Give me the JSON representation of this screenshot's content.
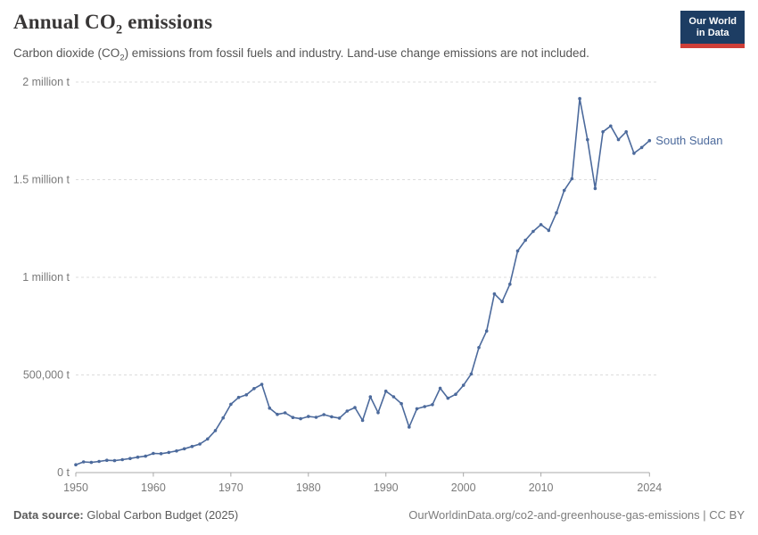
{
  "header": {
    "title_pre": "Annual CO",
    "title_sub": "2",
    "title_post": " emissions",
    "subtitle_pre": "Carbon dioxide (CO",
    "subtitle_sub": "2",
    "subtitle_post": ") emissions from fossil fuels and industry. Land-use change emissions are not included.",
    "logo_line1": "Our World",
    "logo_line2": "in Data"
  },
  "footer": {
    "source_label": "Data source:",
    "source_value": " Global Carbon Budget (2025)",
    "url": "OurWorldinData.org/co2-and-greenhouse-gas-emissions | CC BY"
  },
  "colors": {
    "line": "#4C6A9C",
    "title": "#383636",
    "subtitle": "#555555",
    "axis_text": "#7a7a7a",
    "grid": "#dcdcdc",
    "axis_line": "#a8a8a8",
    "logo_bg": "#1d3d63",
    "logo_red": "#cf3f38"
  },
  "chart_data": {
    "type": "line",
    "title": "Annual CO₂ emissions",
    "subtitle": "Carbon dioxide (CO₂) emissions from fossil fuels and industry. Land-use change emissions are not included.",
    "xlabel": "",
    "ylabel": "",
    "unit": "t",
    "xlim": [
      1950,
      2024
    ],
    "ylim": [
      0,
      2000000
    ],
    "grid": "horizontal-dashed",
    "legend_position": "end-of-line-label",
    "x_ticks": [
      1950,
      1960,
      1970,
      1980,
      1990,
      2000,
      2010,
      2024
    ],
    "y_ticks": [
      {
        "value": 0,
        "label": "0 t"
      },
      {
        "value": 500000,
        "label": "500,000 t"
      },
      {
        "value": 1000000,
        "label": "1 million t"
      },
      {
        "value": 1500000,
        "label": "1.5 million t"
      },
      {
        "value": 2000000,
        "label": "2 million t"
      }
    ],
    "x": [
      1950,
      1951,
      1952,
      1953,
      1954,
      1955,
      1956,
      1957,
      1958,
      1959,
      1960,
      1961,
      1962,
      1963,
      1964,
      1965,
      1966,
      1967,
      1968,
      1969,
      1970,
      1971,
      1972,
      1973,
      1974,
      1975,
      1976,
      1977,
      1978,
      1979,
      1980,
      1981,
      1982,
      1983,
      1984,
      1985,
      1986,
      1987,
      1988,
      1989,
      1990,
      1991,
      1992,
      1993,
      1994,
      1995,
      1996,
      1997,
      1998,
      1999,
      2000,
      2001,
      2002,
      2003,
      2004,
      2005,
      2006,
      2007,
      2008,
      2009,
      2010,
      2011,
      2012,
      2013,
      2014,
      2015,
      2016,
      2017,
      2018,
      2019,
      2020,
      2021,
      2022,
      2023,
      2024
    ],
    "series": [
      {
        "name": "South Sudan",
        "color": "#4C6A9C",
        "values": [
          40000,
          55000,
          52000,
          57000,
          63000,
          61000,
          66000,
          72000,
          79000,
          84000,
          98000,
          97000,
          103000,
          111000,
          122000,
          134000,
          146000,
          172000,
          215000,
          280000,
          350000,
          385000,
          398000,
          430000,
          452000,
          330000,
          298000,
          306000,
          282000,
          276000,
          287000,
          283000,
          297000,
          286000,
          279000,
          315000,
          333000,
          267000,
          388000,
          307000,
          417000,
          388000,
          353000,
          233000,
          327000,
          338000,
          348000,
          432000,
          381000,
          401000,
          447000,
          505000,
          640000,
          725000,
          915000,
          876000,
          965000,
          1135000,
          1190000,
          1235000,
          1270000,
          1240000,
          1330000,
          1445000,
          1505000,
          1915000,
          1705000,
          1455000,
          1745000,
          1775000,
          1705000,
          1745000,
          1635000,
          1665000,
          1700000
        ]
      }
    ]
  }
}
